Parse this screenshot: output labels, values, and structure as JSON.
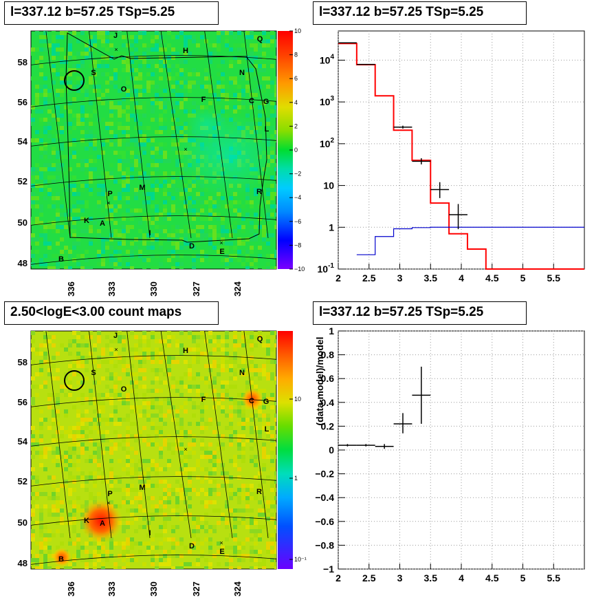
{
  "titles": {
    "map_top": "l=337.12 b=57.25 TSp=5.25",
    "spectrum": "l=337.12 b=57.25 TSp=5.25",
    "map_bottom": "2.50<logE<3.00 count maps",
    "residual": "l=337.12 b=57.25 TSp=5.25"
  },
  "maps": {
    "lat_labels": [
      "58",
      "56",
      "54",
      "52",
      "50",
      "48"
    ],
    "lon_labels": [
      "336",
      "333",
      "330",
      "327",
      "324"
    ],
    "top_colorbar_labels": [
      "10",
      "8",
      "6",
      "4",
      "2",
      "0",
      "−2",
      "−4",
      "−6",
      "−8",
      "−10"
    ],
    "bottom_colorbar_labels": [
      "10",
      "1",
      "10⁻¹"
    ],
    "sources": [
      "J",
      "Q",
      "H",
      "N",
      "S",
      "O",
      "F",
      "C",
      "G",
      "L",
      "M",
      "R",
      "P",
      "K",
      "A",
      "I",
      "D",
      "E",
      "B"
    ]
  },
  "chart_data": [
    {
      "type": "line",
      "title": "l=337.12 b=57.25 TSp=5.25",
      "xlabel": "",
      "ylabel": "",
      "xlim": [
        2,
        6
      ],
      "ylim": [
        0.1,
        50000
      ],
      "y_scale": "log",
      "grid": true,
      "x_ticks": [
        "2",
        "2.5",
        "3",
        "3.5",
        "4",
        "4.5",
        "5",
        "5.5"
      ],
      "y_ticks": [
        "10^{-1}",
        "1",
        "10",
        "10^{2}",
        "10^{3}",
        "10^{4}"
      ],
      "series": [
        {
          "color": "#ff0000",
          "style": "step",
          "bins": [
            2.0,
            2.3,
            2.6,
            2.9,
            3.2,
            3.5,
            3.8,
            4.1,
            4.4,
            6.0
          ],
          "values": [
            25000,
            7800,
            1400,
            210,
            40,
            3.8,
            0.7,
            0.3,
            0.1
          ]
        },
        {
          "color": "#0000cc",
          "style": "step",
          "bins": [
            2.3,
            2.6,
            2.9,
            3.2,
            3.5,
            6.0
          ],
          "values": [
            0.22,
            0.6,
            0.92,
            0.98,
            1.0
          ]
        },
        {
          "color": "#000000",
          "style": "errorbars",
          "points": [
            {
              "x": 2.15,
              "xerr": 0.15,
              "y": 26000,
              "ylo": 25500,
              "yhi": 26500
            },
            {
              "x": 2.45,
              "xerr": 0.15,
              "y": 7900,
              "ylo": 7700,
              "yhi": 8100
            },
            {
              "x": 3.05,
              "xerr": 0.15,
              "y": 250,
              "ylo": 230,
              "yhi": 270
            },
            {
              "x": 3.35,
              "xerr": 0.15,
              "y": 38,
              "ylo": 32,
              "yhi": 45
            },
            {
              "x": 3.65,
              "xerr": 0.15,
              "y": 8,
              "ylo": 5,
              "yhi": 12
            },
            {
              "x": 3.95,
              "xerr": 0.15,
              "y": 2,
              "ylo": 0.9,
              "yhi": 3.6
            }
          ]
        }
      ]
    },
    {
      "type": "scatter",
      "title": "l=337.12 b=57.25 TSp=5.25",
      "xlabel": "",
      "ylabel": "(data-model)/model",
      "xlim": [
        2,
        6
      ],
      "ylim": [
        -1,
        1
      ],
      "grid": true,
      "x_ticks": [
        "2",
        "2.5",
        "3",
        "3.5",
        "4",
        "4.5",
        "5",
        "5.5"
      ],
      "y_ticks": [
        "−1",
        "−0.8",
        "−0.6",
        "−0.4",
        "−0.2",
        "0",
        "0.2",
        "0.4",
        "0.6",
        "0.8",
        "1"
      ],
      "series": [
        {
          "color": "#000000",
          "style": "errorbars",
          "points": [
            {
              "x": 2.15,
              "xerr": 0.15,
              "y": 0.04,
              "ylo": 0.03,
              "yhi": 0.05
            },
            {
              "x": 2.45,
              "xerr": 0.15,
              "y": 0.04,
              "ylo": 0.03,
              "yhi": 0.05
            },
            {
              "x": 2.75,
              "xerr": 0.15,
              "y": 0.03,
              "ylo": 0.01,
              "yhi": 0.05
            },
            {
              "x": 3.05,
              "xerr": 0.15,
              "y": 0.22,
              "ylo": 0.14,
              "yhi": 0.31
            },
            {
              "x": 3.35,
              "xerr": 0.15,
              "y": 0.46,
              "ylo": 0.22,
              "yhi": 0.7
            }
          ]
        }
      ]
    }
  ]
}
